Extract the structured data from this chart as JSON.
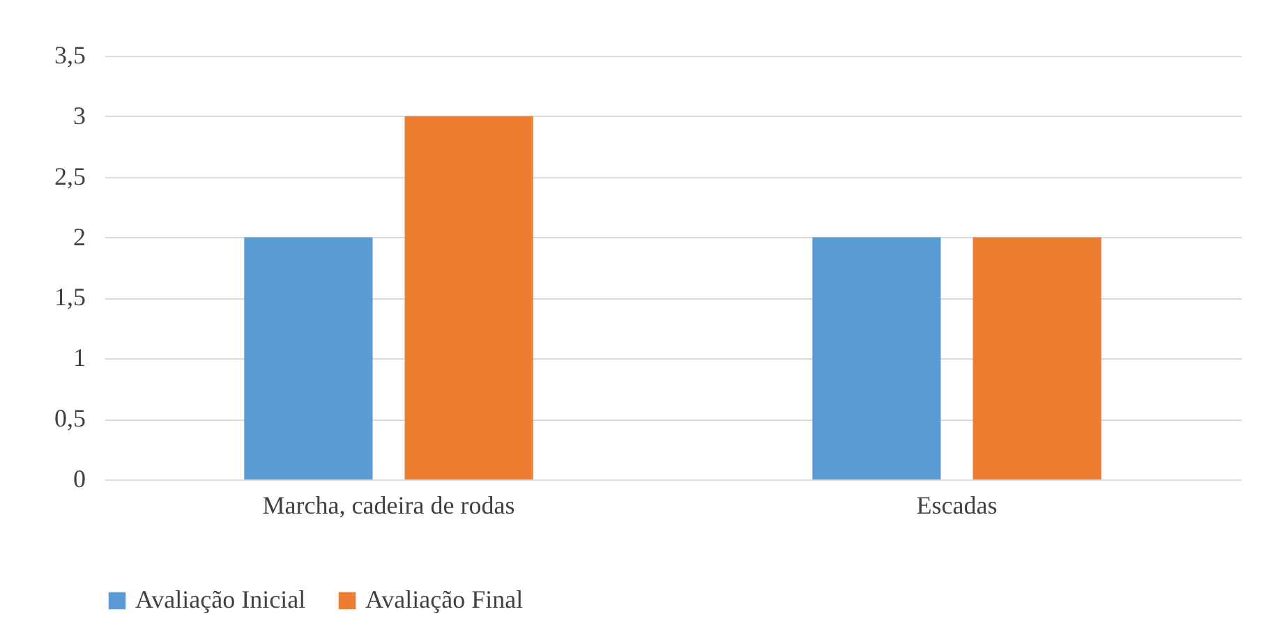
{
  "chart_data": {
    "type": "bar",
    "categories": [
      "Marcha, cadeira de rodas",
      "Escadas"
    ],
    "series": [
      {
        "name": "Avaliação Inicial",
        "color": "#5b9bd5",
        "values": [
          2,
          2
        ]
      },
      {
        "name": "Avaliação Final",
        "color": "#ed7d31",
        "values": [
          3,
          2
        ]
      }
    ],
    "ylim": [
      0,
      3.5
    ],
    "yticks": [
      0,
      {
        "value": 0.5,
        "label": "0,5"
      },
      1,
      {
        "value": 1.5,
        "label": "1,5"
      },
      2,
      {
        "value": 2.5,
        "label": "2,5"
      },
      3,
      {
        "value": 3.5,
        "label": "3,5"
      }
    ],
    "grid": "y",
    "legend": "bottom"
  }
}
